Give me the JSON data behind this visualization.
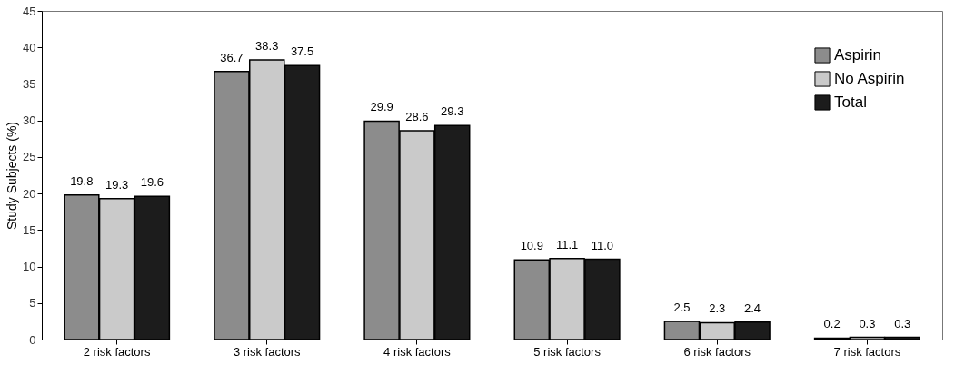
{
  "chart_data": {
    "type": "bar",
    "ylabel": "Study Subjects (%)",
    "categories": [
      "2 risk factors",
      "3 risk factors",
      "4 risk factors",
      "5 risk factors",
      "6 risk factors",
      "7 risk factors"
    ],
    "series": [
      {
        "name": "Aspirin",
        "color": "#8c8c8c",
        "values": [
          19.8,
          36.7,
          29.9,
          10.9,
          2.5,
          0.2
        ],
        "value_labels": [
          "19.8",
          "36.7",
          "29.9",
          "10.9",
          "2.5",
          "0.2"
        ]
      },
      {
        "name": "No Aspirin",
        "color": "#cacaca",
        "values": [
          19.3,
          38.3,
          28.6,
          11.1,
          2.3,
          0.3
        ],
        "value_labels": [
          "19.3",
          "38.3",
          "28.6",
          "11.1",
          "2.3",
          "0.3"
        ]
      },
      {
        "name": "Total",
        "color": "#1c1c1c",
        "values": [
          19.6,
          37.5,
          29.3,
          11.0,
          2.4,
          0.3
        ],
        "value_labels": [
          "19.6",
          "37.5",
          "29.3",
          "11.0",
          "2.4",
          "0.3"
        ]
      }
    ],
    "ylim": [
      0,
      45
    ],
    "yticks": [
      0,
      5,
      10,
      15,
      20,
      25,
      30,
      35,
      40,
      45
    ],
    "grid": false,
    "legend": "top right"
  }
}
